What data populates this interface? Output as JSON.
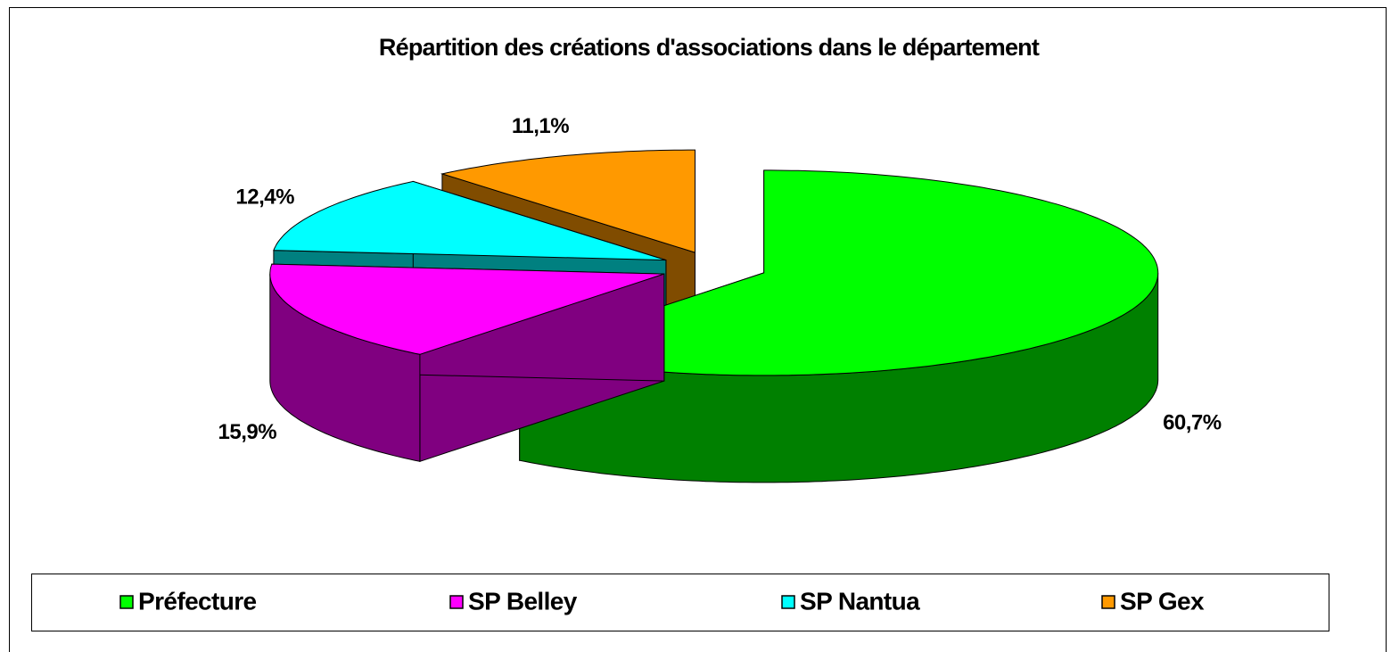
{
  "chart_data": {
    "type": "pie3d",
    "title": "Répartition des créations d'associations dans le département",
    "categories": [
      "Préfecture",
      "SP Belley",
      "SP Nantua",
      "SP Gex"
    ],
    "values": [
      60.7,
      15.9,
      12.4,
      11.1
    ],
    "value_labels": [
      "60,7%",
      "15,9%",
      "12,4%",
      "11,1%"
    ],
    "colors": [
      "#00ff00",
      "#ff00ff",
      "#00ffff",
      "#ff9900"
    ],
    "side_colors": [
      "#008000",
      "#800080",
      "#008080",
      "#804c00"
    ],
    "legend": "bottom"
  }
}
